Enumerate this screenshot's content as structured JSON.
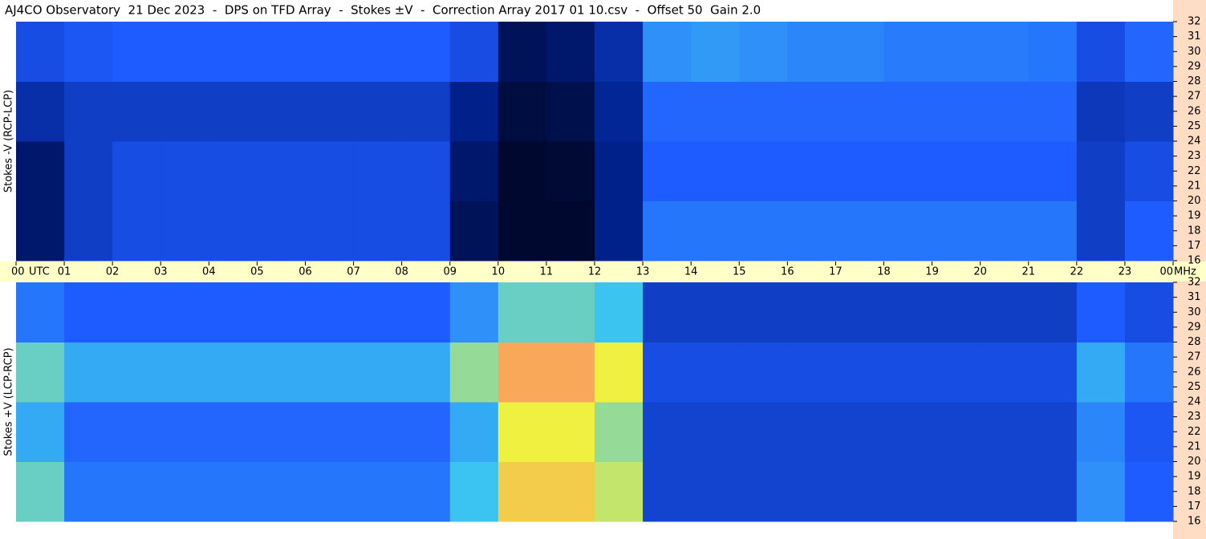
{
  "title": "AJ4CO Observatory  21 Dec 2023  -  DPS on TFD Array  -  Stokes ±V  -  Correction Array 2017 01 10.csv  -  Offset 50  Gain 2.0",
  "time_unit": "UTC",
  "freq_unit": "MHz",
  "xlim": [
    0,
    24
  ],
  "xticks": [
    {
      "value": 0,
      "label": "00"
    },
    {
      "value": 1,
      "label": "01"
    },
    {
      "value": 2,
      "label": "02"
    },
    {
      "value": 3,
      "label": "03"
    },
    {
      "value": 4,
      "label": "04"
    },
    {
      "value": 5,
      "label": "05"
    },
    {
      "value": 6,
      "label": "06"
    },
    {
      "value": 7,
      "label": "07"
    },
    {
      "value": 8,
      "label": "08"
    },
    {
      "value": 9,
      "label": "09"
    },
    {
      "value": 10,
      "label": "10"
    },
    {
      "value": 11,
      "label": "11"
    },
    {
      "value": 12,
      "label": "12"
    },
    {
      "value": 13,
      "label": "13"
    },
    {
      "value": 14,
      "label": "14"
    },
    {
      "value": 15,
      "label": "15"
    },
    {
      "value": 16,
      "label": "16"
    },
    {
      "value": 17,
      "label": "17"
    },
    {
      "value": 18,
      "label": "18"
    },
    {
      "value": 19,
      "label": "19"
    },
    {
      "value": 20,
      "label": "20"
    },
    {
      "value": 21,
      "label": "21"
    },
    {
      "value": 22,
      "label": "22"
    },
    {
      "value": 23,
      "label": "23"
    },
    {
      "value": 24,
      "label": "00"
    }
  ],
  "chart_data": [
    {
      "type": "heatmap",
      "ylabel": "Stokes -V (RCP-LCP)",
      "xbins": [
        0,
        1,
        2,
        3,
        4,
        5,
        6,
        7,
        8,
        9,
        10,
        11,
        12,
        13,
        14,
        15,
        16,
        17,
        18,
        19,
        20,
        21,
        22,
        23,
        24
      ],
      "ybins": [
        16,
        20,
        24,
        28,
        32
      ],
      "ylim": [
        16,
        32
      ],
      "yticks": [
        16,
        17,
        18,
        19,
        20,
        21,
        22,
        23,
        24,
        25,
        26,
        27,
        28,
        29,
        30,
        31,
        32
      ],
      "zlim": [
        0,
        10
      ],
      "colormap": [
        "#000010",
        "#00208a",
        "#1f5cff",
        "#3cc4f0",
        "#f0f040",
        "#ff6070"
      ],
      "values": [
        [
          1.5,
          3,
          3.5,
          3.5,
          3.5,
          3.5,
          3.5,
          3.5,
          3.5,
          1.2,
          0.5,
          0.5,
          2,
          4.5,
          4.5,
          4.5,
          4.5,
          4.5,
          4.5,
          4.5,
          4.5,
          4.5,
          3,
          4
        ],
        [
          1.5,
          3,
          3.5,
          3.5,
          3.5,
          3.5,
          3.5,
          3.5,
          3.5,
          1.5,
          0.5,
          0.6,
          2,
          4,
          4,
          4,
          4,
          4,
          4,
          4,
          4,
          4,
          3,
          3.5
        ],
        [
          2.5,
          3,
          3,
          3,
          3,
          3,
          3,
          3,
          3,
          2,
          0.8,
          1,
          2.2,
          4.2,
          4.2,
          4.2,
          4.2,
          4.2,
          4.2,
          4.2,
          4.2,
          4.2,
          2.8,
          3
        ],
        [
          3.5,
          3.8,
          4,
          4,
          4,
          4,
          4,
          4,
          4,
          3.5,
          1.2,
          1.5,
          2.5,
          5,
          5.2,
          5,
          4.8,
          4.8,
          4.6,
          4.6,
          4.6,
          4.5,
          3.5,
          4.2
        ]
      ]
    },
    {
      "type": "heatmap",
      "ylabel": "Stokes +V (LCP-RCP)",
      "xbins": [
        0,
        1,
        2,
        3,
        4,
        5,
        6,
        7,
        8,
        9,
        10,
        11,
        12,
        13,
        14,
        15,
        16,
        17,
        18,
        19,
        20,
        21,
        22,
        23,
        24
      ],
      "ybins": [
        16,
        20,
        24,
        28,
        32
      ],
      "ylim": [
        16,
        32
      ],
      "yticks": [
        16,
        17,
        18,
        19,
        20,
        21,
        22,
        23,
        24,
        25,
        26,
        27,
        28,
        29,
        30,
        31,
        32
      ],
      "zlim": [
        0,
        10
      ],
      "colormap": [
        "#000010",
        "#00208a",
        "#1f5cff",
        "#3cc4f0",
        "#f0f040",
        "#ff6070"
      ],
      "values": [
        [
          6.5,
          4.5,
          4.5,
          4.5,
          4.5,
          4.5,
          4.5,
          4.5,
          4.5,
          6,
          8.5,
          8.5,
          7.5,
          3.2,
          3.2,
          3.2,
          3.2,
          3.2,
          3.2,
          3.2,
          3.2,
          3.2,
          5,
          4
        ],
        [
          5.5,
          4.2,
          4.2,
          4.2,
          4.2,
          4.2,
          4.2,
          4.2,
          4.2,
          5.5,
          8,
          8,
          7,
          3.2,
          3.2,
          3.2,
          3.2,
          3.2,
          3.2,
          3.2,
          3.2,
          3.2,
          4.8,
          3.8
        ],
        [
          6.5,
          5.5,
          5.5,
          5.5,
          5.5,
          5.5,
          5.5,
          5.5,
          5.5,
          7,
          9,
          9,
          8,
          3.5,
          3.5,
          3.5,
          3.5,
          3.5,
          3.5,
          3.5,
          3.5,
          3.5,
          5.5,
          4.5
        ],
        [
          4.5,
          4,
          4,
          4,
          4,
          4,
          4,
          4,
          4,
          5,
          6.5,
          6.5,
          6,
          3,
          3,
          3,
          3,
          3,
          3,
          3,
          3,
          3,
          4,
          3.5
        ]
      ]
    }
  ]
}
